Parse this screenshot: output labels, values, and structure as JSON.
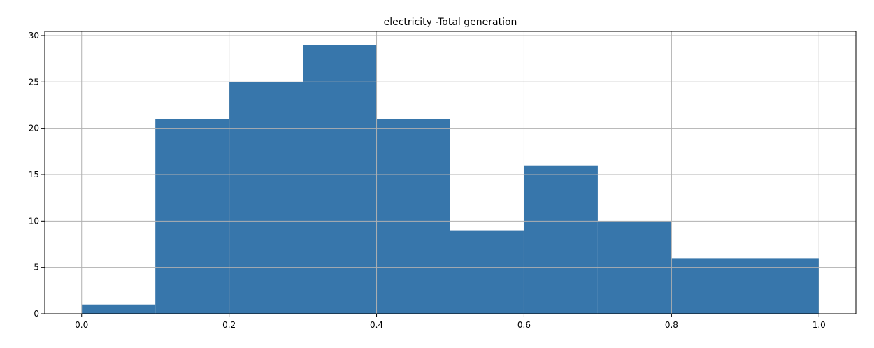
{
  "chart_data": {
    "type": "bar",
    "title": "electricity -Total generation",
    "xlabel": "",
    "ylabel": "",
    "bin_edges": [
      0.0,
      0.1,
      0.2,
      0.3,
      0.4,
      0.5,
      0.6,
      0.7,
      0.8,
      0.9,
      1.0
    ],
    "values": [
      1,
      21,
      25,
      29,
      21,
      9,
      16,
      10,
      6,
      6
    ],
    "xlim": [
      -0.05,
      1.05
    ],
    "ylim": [
      0,
      30.45
    ],
    "x_ticks": [
      0.0,
      0.2,
      0.4,
      0.6,
      0.8,
      1.0
    ],
    "x_tick_labels": [
      "0.0",
      "0.2",
      "0.4",
      "0.6",
      "0.8",
      "1.0"
    ],
    "y_ticks": [
      0,
      5,
      10,
      15,
      20,
      25,
      30
    ],
    "y_tick_labels": [
      "0",
      "5",
      "10",
      "15",
      "20",
      "25",
      "30"
    ],
    "grid": true,
    "legend": "none",
    "bar_color": "#3776ab",
    "grid_color": "#b0b0b0"
  }
}
